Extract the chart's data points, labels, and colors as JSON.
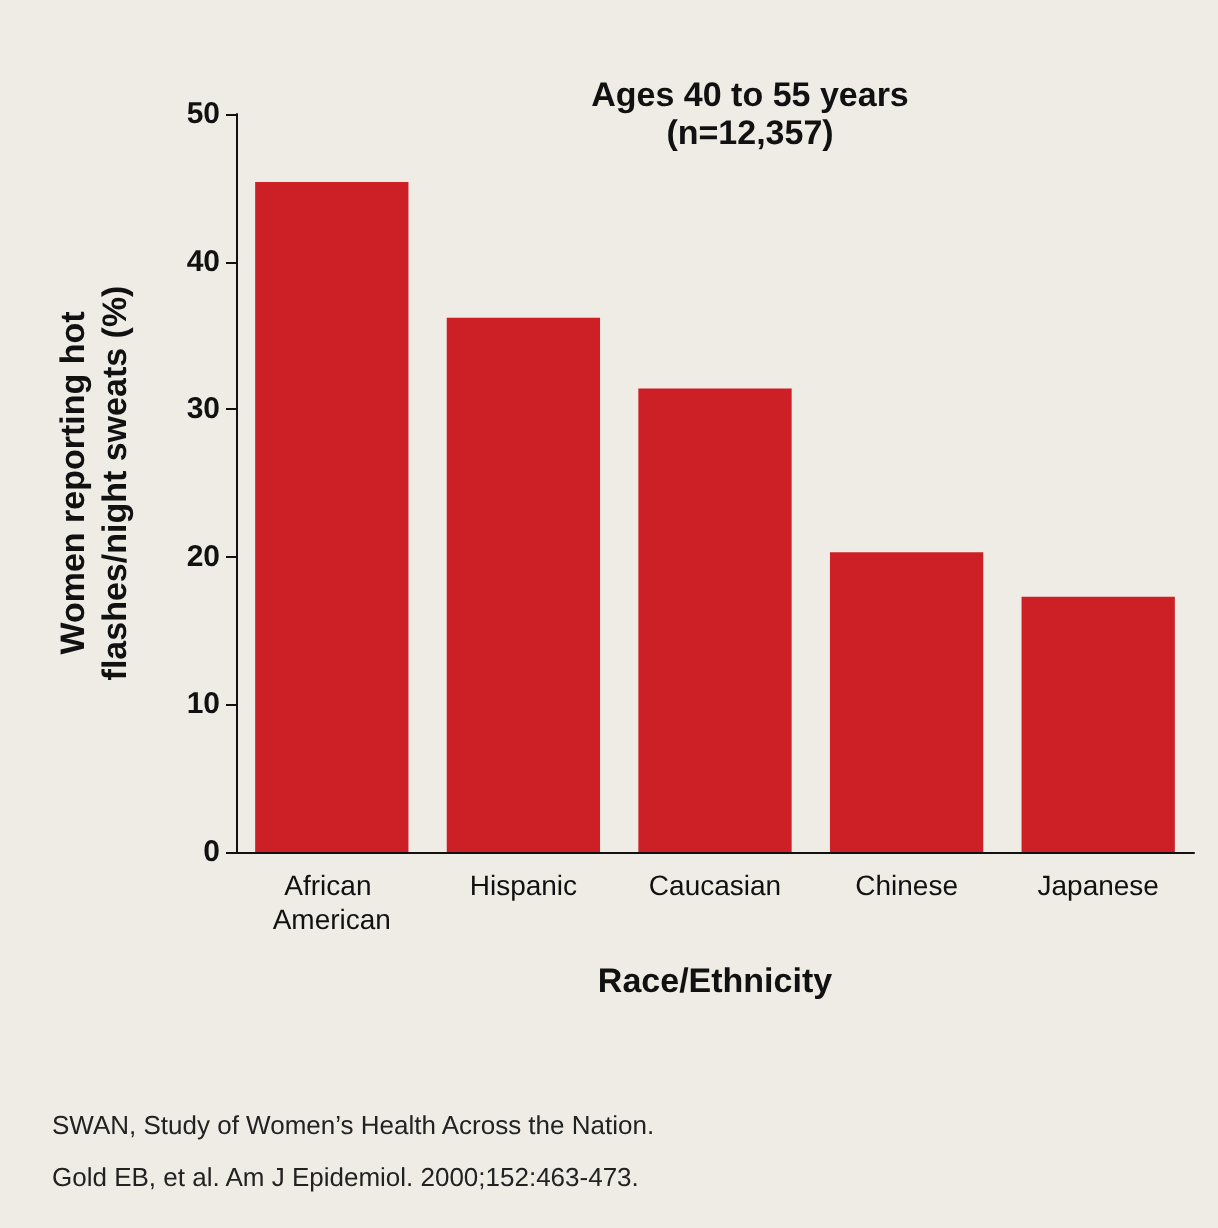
{
  "chart_data": {
    "type": "bar",
    "title": "Ages 40 to 55 years",
    "subtitle": "(n=12,357)",
    "xlabel": "Race/Ethnicity",
    "ylabel": "Women reporting hot\nflashes/night sweats (%)",
    "categories": [
      "African American",
      "Hispanic",
      "Caucasian",
      "Chinese",
      "Japanese"
    ],
    "values": [
      45.4,
      36.2,
      31.4,
      20.3,
      17.3
    ],
    "color": "#cc1f26",
    "ylim": [
      0,
      50
    ],
    "yticks": [
      0,
      10,
      20,
      30,
      40,
      50
    ],
    "grid": false,
    "annotations": [
      "SWAN, Study of Women’s Health Across the Nation.",
      "Gold EB, et al. Am J Epidemiol. 2000;152:463-473."
    ]
  }
}
